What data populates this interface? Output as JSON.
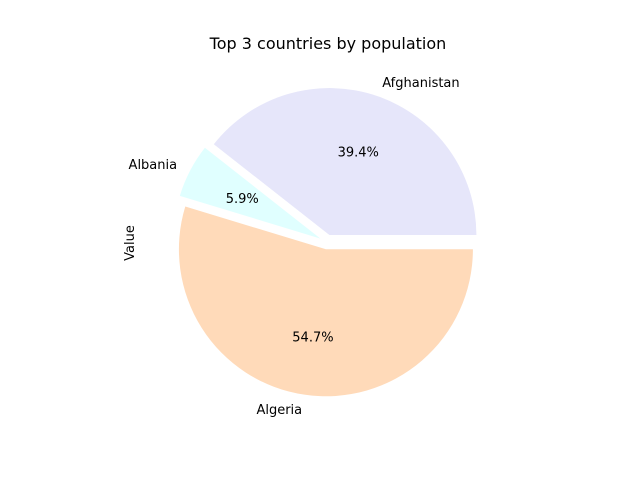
{
  "chart_data": {
    "type": "pie",
    "title": "Top 3 countries by population",
    "ylabel": "Value",
    "slices": [
      {
        "label": "Afghanistan",
        "percent": 39.4,
        "percent_label": "39.4%",
        "color": "#E6E6FA",
        "exploded": true
      },
      {
        "label": "Albania",
        "percent": 5.9,
        "percent_label": "5.9%",
        "color": "#E0FFFF",
        "exploded": true
      },
      {
        "label": "Algeria",
        "percent": 54.7,
        "percent_label": "54.7%",
        "color": "#FFDAB9",
        "exploded": true
      }
    ],
    "start_angle_deg": 0,
    "direction": "counterclockwise"
  }
}
